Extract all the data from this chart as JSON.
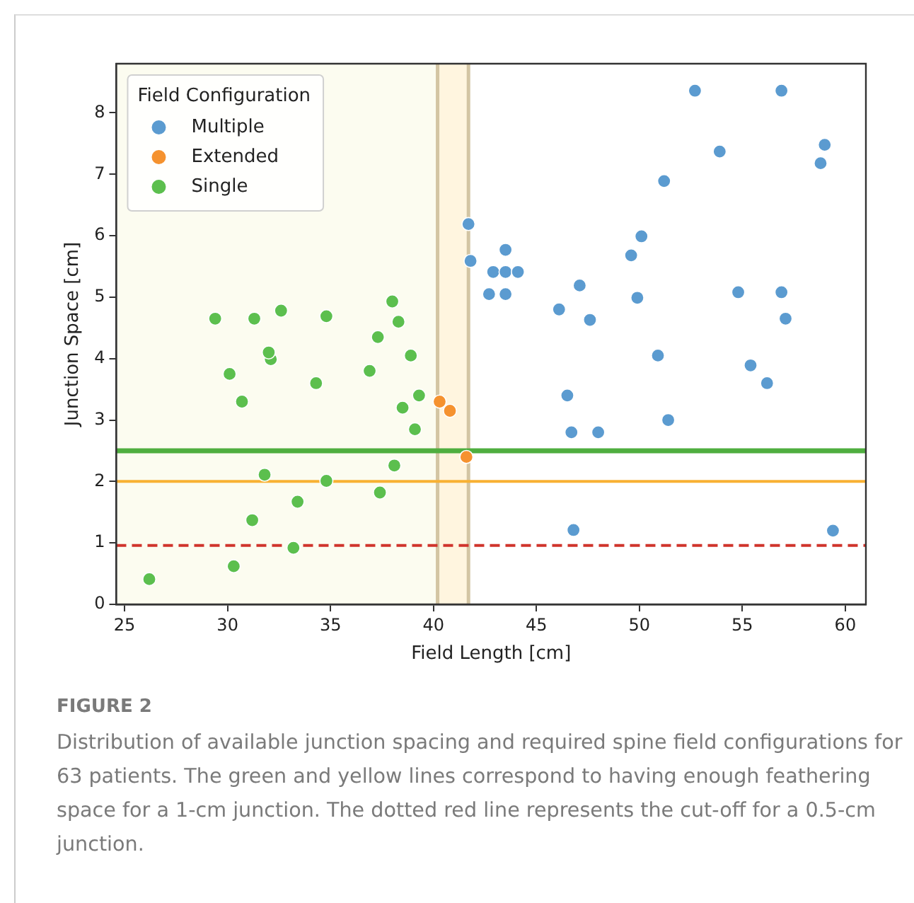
{
  "chart_data": {
    "type": "scatter",
    "xlabel": "Field Length [cm]",
    "ylabel": "Junction Space [cm]",
    "legend_title": "Field Configuration",
    "legend": "top left",
    "grid": false,
    "marker": "circle",
    "xlim": [
      24.6,
      61
    ],
    "xticks": [
      25,
      30,
      35,
      40,
      45,
      50,
      55,
      60
    ],
    "ylim": [
      0,
      8.8
    ],
    "yticks": [
      0,
      1,
      2,
      3,
      4,
      5,
      6,
      7,
      8
    ],
    "series": [
      {
        "name": "Multiple",
        "color": "#5b9bd0",
        "x": [
          41.7,
          41.8,
          43.5,
          42.9,
          43.5,
          44.1,
          42.7,
          43.5,
          46.1,
          47.1,
          47.6,
          49.6,
          50.1,
          49.9,
          50.9,
          51.2,
          52.7,
          53.9,
          56.9,
          59.0,
          58.8,
          54.8,
          56.9,
          57.1,
          55.4,
          56.2,
          46.5,
          46.7,
          48.0,
          51.4,
          46.8,
          59.4
        ],
        "values": [
          6.19,
          5.59,
          5.77,
          5.41,
          5.41,
          5.41,
          5.05,
          5.05,
          4.8,
          5.19,
          4.63,
          5.68,
          5.99,
          4.99,
          4.05,
          6.89,
          8.36,
          7.37,
          8.36,
          7.48,
          7.18,
          5.08,
          5.08,
          4.65,
          3.89,
          3.6,
          3.4,
          2.8,
          2.8,
          3.0,
          1.21,
          1.2
        ]
      },
      {
        "name": "Extended",
        "color": "#f5922f",
        "x": [
          40.3,
          40.8,
          41.6
        ],
        "values": [
          3.3,
          3.15,
          2.4
        ]
      },
      {
        "name": "Single",
        "color": "#5cbf4e",
        "x": [
          26.2,
          30.3,
          33.2,
          31.2,
          33.4,
          31.8,
          34.8,
          37.4,
          38.1,
          39.1,
          38.5,
          39.3,
          30.7,
          30.1,
          34.3,
          36.9,
          32.1,
          32.0,
          38.9,
          37.3,
          29.4,
          31.3,
          32.6,
          34.8,
          38.3,
          38.0
        ],
        "values": [
          0.41,
          0.62,
          0.92,
          1.37,
          1.67,
          2.11,
          2.01,
          1.82,
          2.26,
          2.85,
          3.2,
          3.4,
          3.3,
          3.75,
          3.6,
          3.8,
          3.99,
          4.1,
          4.05,
          4.35,
          4.65,
          4.65,
          4.78,
          4.69,
          4.6,
          4.93
        ]
      }
    ],
    "bands": [
      {
        "axis": "x",
        "from": 24.6,
        "to": 40.2,
        "color": "#fcfcf0"
      },
      {
        "axis": "x",
        "from": 40.2,
        "to": 41.7,
        "color": "#fff5df"
      }
    ],
    "ref_lines": [
      {
        "axis": "x",
        "value": 40.2,
        "color": "#d3c5a3",
        "line_style": "solid"
      },
      {
        "axis": "x",
        "value": 41.7,
        "color": "#d3c5a3",
        "line_style": "solid"
      },
      {
        "axis": "y",
        "value": 2.5,
        "color": "#4fae3f",
        "line_style": "solid"
      },
      {
        "axis": "y",
        "value": 2.0,
        "color": "#f8b133",
        "line_style": "solid"
      },
      {
        "axis": "y",
        "value": 0.96,
        "color": "#d0342c",
        "line_style": "dashed"
      }
    ],
    "annotations": [
      "FIGURE 2",
      "Distribution of available junction spacing and required spine field configurations for 63 patients. The green and yellow lines correspond to having enough feathering space for a 1-cm junction. The dotted red line represents the cut-off for a 0.5-cm junction."
    ]
  }
}
